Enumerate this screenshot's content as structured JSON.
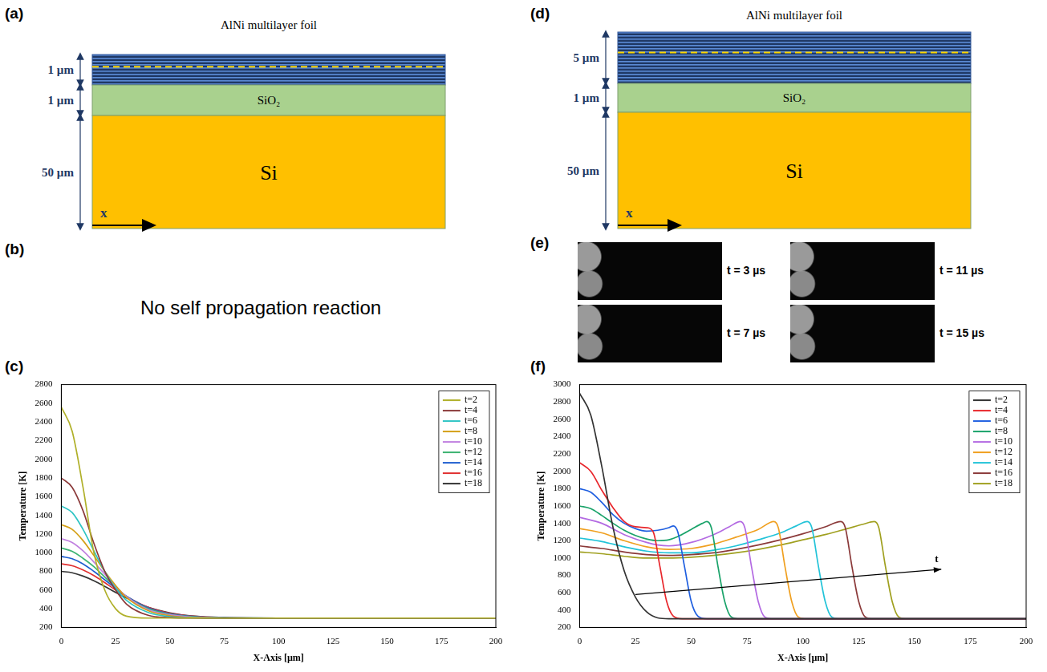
{
  "diagrams": [
    {
      "panel": "(a)",
      "title": "AlNi multilayer foil",
      "layers": [
        {
          "thickness": "1 µm"
        },
        {
          "name": "SiO₂",
          "thickness": "1 µm"
        },
        {
          "name": "Si",
          "thickness": "50 µm"
        }
      ],
      "axis_label": "x"
    },
    {
      "panel": "(d)",
      "title": "AlNi multilayer foil",
      "layers": [
        {
          "thickness": "5 µm"
        },
        {
          "name": "SiO₂",
          "thickness": "1 µm"
        },
        {
          "name": "Si",
          "thickness": "50 µm"
        }
      ],
      "axis_label": "x"
    }
  ],
  "panel_b": {
    "panel": "(b)",
    "text": "No self propagation reaction"
  },
  "panel_e": {
    "panel": "(e)",
    "frames": [
      "t = 3 µs",
      "t = 11 µs",
      "t = 7 µs",
      "t = 15 µs"
    ]
  },
  "chart_data": [
    {
      "panel": "(c)",
      "type": "line",
      "x_label": "X-Axis [µm]",
      "y_label": "Temperature [K]",
      "xlim": [
        0,
        200
      ],
      "xticks": [
        0,
        25,
        50,
        75,
        100,
        125,
        150,
        175,
        200
      ],
      "ylim": [
        200,
        2800
      ],
      "yticks": [
        200,
        400,
        600,
        800,
        1000,
        1200,
        1400,
        1600,
        1800,
        2000,
        2200,
        2400,
        2600,
        2800
      ],
      "grid": false,
      "legend": "upper right",
      "x": [
        0,
        5,
        10,
        15,
        20,
        25,
        30,
        40,
        50,
        60,
        75,
        100,
        125,
        150,
        175,
        200
      ],
      "series": [
        {
          "name": "t=2",
          "color": "#b0b02a",
          "values": [
            2560,
            2300,
            1700,
            1000,
            600,
            400,
            320,
            300,
            300,
            300,
            300,
            300,
            300,
            300,
            300,
            300
          ]
        },
        {
          "name": "t=4",
          "color": "#8b3a3a",
          "values": [
            1800,
            1700,
            1450,
            1100,
            800,
            600,
            450,
            330,
            305,
            300,
            300,
            300,
            300,
            300,
            300,
            300
          ]
        },
        {
          "name": "t=6",
          "color": "#2ec4c4",
          "values": [
            1500,
            1430,
            1250,
            1020,
            800,
            620,
            490,
            360,
            315,
            302,
            300,
            300,
            300,
            300,
            300,
            300
          ]
        },
        {
          "name": "t=8",
          "color": "#d4a017",
          "values": [
            1300,
            1250,
            1130,
            970,
            800,
            650,
            520,
            380,
            325,
            305,
            300,
            300,
            300,
            300,
            300,
            300
          ]
        },
        {
          "name": "t=10",
          "color": "#c080e0",
          "values": [
            1150,
            1110,
            1020,
            900,
            770,
            640,
            530,
            390,
            335,
            310,
            300,
            300,
            300,
            300,
            300,
            300
          ]
        },
        {
          "name": "t=12",
          "color": "#3cb371",
          "values": [
            1050,
            1015,
            940,
            850,
            740,
            630,
            530,
            400,
            340,
            315,
            302,
            300,
            300,
            300,
            300,
            300
          ]
        },
        {
          "name": "t=14",
          "color": "#1f5fd0",
          "values": [
            960,
            935,
            880,
            800,
            710,
            620,
            535,
            410,
            345,
            318,
            303,
            300,
            300,
            300,
            300,
            300
          ]
        },
        {
          "name": "t=16",
          "color": "#e03030",
          "values": [
            880,
            860,
            815,
            755,
            680,
            600,
            530,
            415,
            350,
            320,
            304,
            300,
            300,
            300,
            300,
            300
          ]
        },
        {
          "name": "t=18",
          "color": "#333333",
          "values": [
            800,
            785,
            750,
            700,
            640,
            575,
            515,
            415,
            355,
            322,
            305,
            300,
            300,
            300,
            300,
            300
          ]
        }
      ]
    },
    {
      "panel": "(f)",
      "type": "line",
      "x_label": "X-Axis [µm]",
      "y_label": "Temperature [K]",
      "xlim": [
        0,
        200
      ],
      "xticks": [
        0,
        25,
        50,
        75,
        100,
        125,
        150,
        175,
        200
      ],
      "ylim": [
        200,
        3000
      ],
      "yticks": [
        200,
        400,
        600,
        800,
        1000,
        1200,
        1400,
        1600,
        1800,
        2000,
        2200,
        2400,
        2600,
        2800,
        3000
      ],
      "grid": false,
      "legend": "upper right",
      "annotations": [
        {
          "text": "t",
          "arrow_from": [
            25,
            580
          ],
          "arrow_to": [
            162,
            870
          ]
        }
      ],
      "series": [
        {
          "name": "t=2",
          "color": "#333333",
          "x": [
            0,
            5,
            10,
            15,
            20,
            25,
            30,
            35,
            40,
            200
          ],
          "values": [
            2900,
            2650,
            2050,
            1350,
            850,
            550,
            380,
            310,
            300,
            300
          ]
        },
        {
          "name": "t=4",
          "color": "#e8262b",
          "x": [
            0,
            5,
            10,
            15,
            20,
            25,
            30,
            33,
            36,
            39,
            42,
            46,
            200
          ],
          "values": [
            2100,
            2000,
            1780,
            1580,
            1420,
            1360,
            1350,
            1300,
            900,
            500,
            330,
            300,
            300
          ]
        },
        {
          "name": "t=6",
          "color": "#1f5fe0",
          "x": [
            0,
            5,
            10,
            15,
            20,
            25,
            30,
            35,
            40,
            42,
            44,
            47,
            50,
            53,
            57,
            200
          ],
          "values": [
            1800,
            1760,
            1640,
            1500,
            1400,
            1340,
            1310,
            1320,
            1350,
            1370,
            1300,
            900,
            500,
            330,
            300,
            300
          ]
        },
        {
          "name": "t=8",
          "color": "#1aa36a",
          "x": [
            0,
            5,
            10,
            15,
            20,
            25,
            30,
            35,
            40,
            45,
            50,
            55,
            57,
            59,
            62,
            65,
            68,
            72,
            200
          ],
          "values": [
            1600,
            1570,
            1490,
            1400,
            1320,
            1260,
            1220,
            1200,
            1210,
            1260,
            1330,
            1400,
            1420,
            1350,
            900,
            500,
            320,
            300,
            300
          ]
        },
        {
          "name": "t=10",
          "color": "#b36ae2",
          "x": [
            0,
            10,
            20,
            30,
            35,
            40,
            50,
            60,
            67,
            72,
            74,
            77,
            80,
            83,
            87,
            200
          ],
          "values": [
            1470,
            1400,
            1270,
            1180,
            1150,
            1140,
            1180,
            1270,
            1360,
            1420,
            1350,
            900,
            500,
            320,
            300,
            300
          ]
        },
        {
          "name": "t=12",
          "color": "#f0a020",
          "x": [
            0,
            10,
            20,
            30,
            40,
            50,
            60,
            70,
            80,
            87,
            89,
            92,
            95,
            98,
            102,
            200
          ],
          "values": [
            1340,
            1290,
            1200,
            1130,
            1100,
            1110,
            1160,
            1240,
            1330,
            1420,
            1350,
            900,
            500,
            320,
            300,
            300
          ]
        },
        {
          "name": "t=14",
          "color": "#22c3d8",
          "x": [
            0,
            10,
            20,
            30,
            40,
            50,
            60,
            70,
            80,
            90,
            97,
            102,
            104,
            107,
            110,
            113,
            117,
            200
          ],
          "values": [
            1230,
            1190,
            1130,
            1080,
            1060,
            1060,
            1090,
            1140,
            1210,
            1290,
            1370,
            1420,
            1350,
            900,
            500,
            320,
            300,
            300
          ]
        },
        {
          "name": "t=16",
          "color": "#8b3a3a",
          "x": [
            0,
            10,
            20,
            30,
            40,
            50,
            60,
            70,
            80,
            90,
            100,
            110,
            117,
            119,
            122,
            125,
            128,
            132,
            200
          ],
          "values": [
            1140,
            1110,
            1070,
            1040,
            1030,
            1040,
            1060,
            1100,
            1150,
            1210,
            1280,
            1360,
            1420,
            1350,
            900,
            500,
            320,
            300,
            300
          ]
        },
        {
          "name": "t=18",
          "color": "#a0a020",
          "x": [
            0,
            10,
            20,
            30,
            40,
            50,
            60,
            70,
            80,
            90,
            100,
            110,
            120,
            127,
            132,
            134,
            137,
            140,
            143,
            147,
            200
          ],
          "values": [
            1070,
            1050,
            1020,
            1000,
            1000,
            1010,
            1030,
            1060,
            1100,
            1150,
            1210,
            1270,
            1340,
            1390,
            1420,
            1350,
            900,
            500,
            320,
            300,
            300
          ]
        }
      ]
    }
  ]
}
